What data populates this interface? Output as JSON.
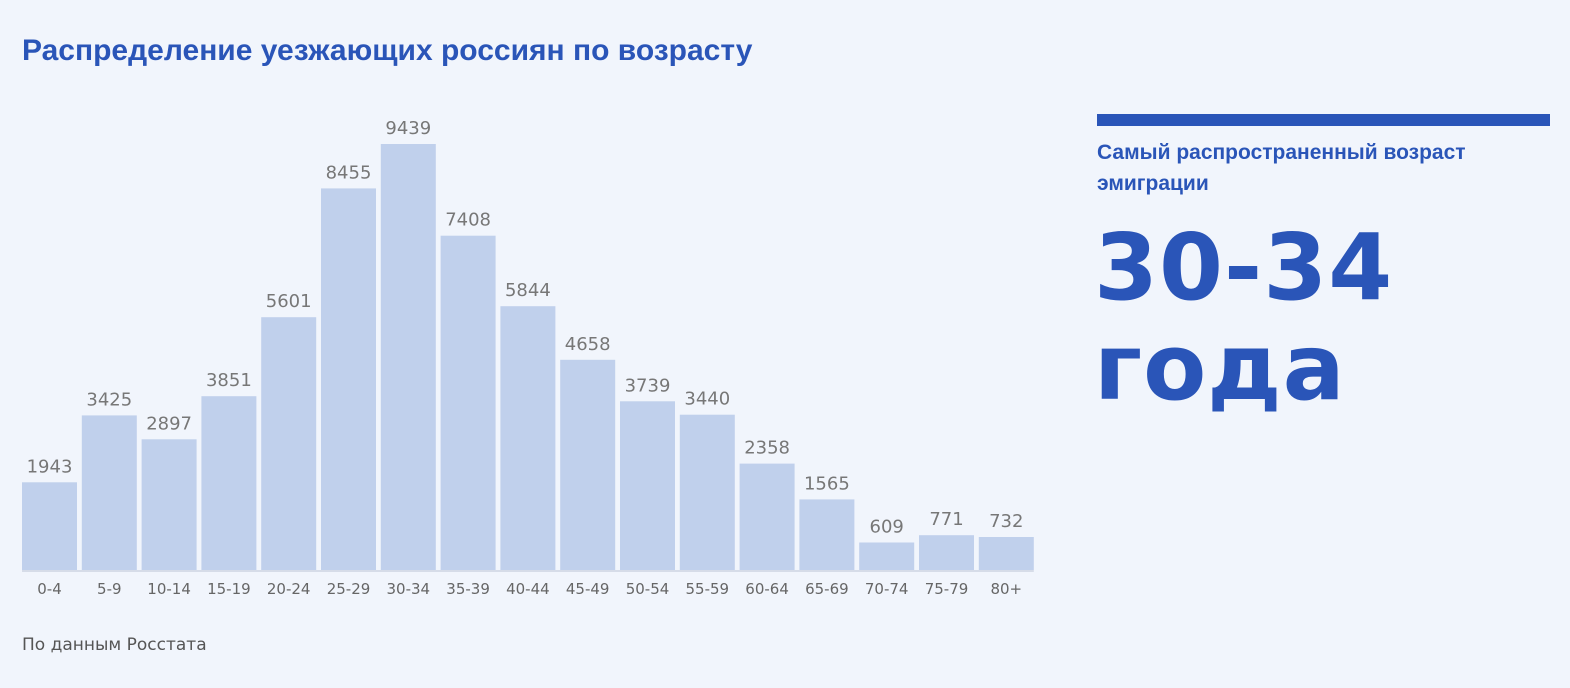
{
  "chart_data": {
    "type": "bar",
    "title": "Распределение уезжающих россиян по возрасту",
    "categories": [
      "0-4",
      "5-9",
      "10-14",
      "15-19",
      "20-24",
      "25-29",
      "30-34",
      "35-39",
      "40-44",
      "45-49",
      "50-54",
      "55-59",
      "60-64",
      "65-69",
      "70-74",
      "75-79",
      "80+"
    ],
    "values": [
      1943,
      3425,
      2897,
      3851,
      5601,
      8455,
      9439,
      7408,
      5844,
      4658,
      3739,
      3440,
      2358,
      1565,
      609,
      771,
      732
    ],
    "xlabel": "",
    "ylabel": "",
    "ylim": [
      0,
      9439
    ],
    "grid": false,
    "legend": "none",
    "colors": {
      "bar": "#c0d0ec",
      "axis": "#d6dce8",
      "value_label": "#777777",
      "tick_label": "#666666"
    }
  },
  "source": "По данным Росстата",
  "highlight": {
    "label": "Самый распространенный возраст эмиграции",
    "value": "30-34\nгода",
    "color": "#2a55b8"
  }
}
